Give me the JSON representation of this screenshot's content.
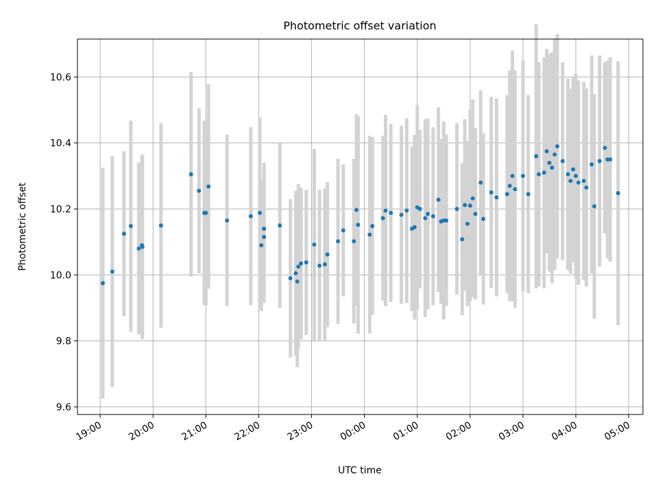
{
  "chart_data": {
    "type": "scatter",
    "title": "Photometric offset variation",
    "xlabel": "UTC time",
    "ylabel": "Photometric offset",
    "x_tick_labels": [
      "19:00",
      "20:00",
      "21:00",
      "22:00",
      "23:00",
      "00:00",
      "01:00",
      "02:00",
      "03:00",
      "04:00",
      "05:00"
    ],
    "y_ticks": [
      9.6,
      9.8,
      10.0,
      10.2,
      10.4,
      10.6
    ],
    "y_tick_labels": [
      "9.6",
      "9.8",
      "10.0",
      "10.2",
      "10.4",
      "10.6"
    ],
    "xlim_hours": [
      18.57,
      29.27
    ],
    "ylim": [
      9.577,
      10.715
    ],
    "grid": true,
    "colors": {
      "points": "#1f77b4",
      "errorbars": "#d3d3d3",
      "grid": "#b0b0b0"
    },
    "series": [
      {
        "x_hours": [
          19.05,
          19.23,
          19.45,
          19.58,
          19.73,
          19.79,
          19.8,
          20.15,
          20.72,
          20.87,
          20.97,
          21.0,
          21.05,
          21.4,
          21.85,
          22.02,
          22.05,
          22.1,
          22.1,
          22.4,
          22.6,
          22.7,
          22.73,
          22.75,
          22.8,
          22.9,
          23.05,
          23.15,
          23.25,
          23.3,
          23.5,
          23.6,
          23.8,
          23.85,
          23.88,
          24.1,
          24.15,
          24.35,
          24.4,
          24.5,
          24.7,
          24.8,
          24.9,
          24.95,
          25.0,
          25.05,
          25.15,
          25.2,
          25.3,
          25.4,
          25.45,
          25.5,
          25.55,
          25.75,
          25.85,
          25.9,
          25.95,
          26.0,
          26.05,
          26.1,
          26.2,
          26.25,
          26.4,
          26.5,
          26.7,
          26.75,
          26.8,
          26.85,
          27.0,
          27.1,
          27.25,
          27.3,
          27.4,
          27.45,
          27.5,
          27.55,
          27.6,
          27.65,
          27.75,
          27.85,
          27.9,
          27.95,
          28.0,
          28.05,
          28.15,
          28.2,
          28.3,
          28.35,
          28.45,
          28.55,
          28.6,
          28.65,
          28.8
        ],
        "y": [
          9.975,
          10.01,
          10.125,
          10.148,
          10.08,
          10.09,
          10.085,
          10.15,
          10.305,
          10.255,
          10.188,
          10.188,
          10.268,
          10.165,
          10.178,
          10.188,
          10.09,
          10.115,
          10.14,
          10.15,
          9.99,
          10.005,
          9.98,
          10.025,
          10.035,
          10.038,
          10.092,
          10.028,
          10.032,
          10.062,
          10.102,
          10.135,
          10.102,
          10.197,
          10.152,
          10.122,
          10.148,
          10.172,
          10.195,
          10.188,
          10.182,
          10.195,
          10.14,
          10.145,
          10.205,
          10.2,
          10.172,
          10.185,
          10.178,
          10.228,
          10.162,
          10.165,
          10.165,
          10.2,
          10.108,
          10.212,
          10.155,
          10.21,
          10.232,
          10.185,
          10.28,
          10.17,
          10.25,
          10.235,
          10.245,
          10.27,
          10.3,
          10.26,
          10.3,
          10.245,
          10.36,
          10.305,
          10.31,
          10.375,
          10.34,
          10.325,
          10.365,
          10.39,
          10.345,
          10.305,
          10.285,
          10.32,
          10.3,
          10.28,
          10.285,
          10.265,
          10.335,
          10.208,
          10.345,
          10.385,
          10.35,
          10.35,
          10.248
        ],
        "err": [
          0.35,
          0.35,
          0.25,
          0.32,
          0.26,
          0.27,
          0.28,
          0.31,
          0.31,
          0.25,
          0.28,
          0.28,
          0.31,
          0.26,
          0.27,
          0.29,
          0.2,
          0.2,
          0.2,
          0.25,
          0.24,
          0.25,
          0.26,
          0.25,
          0.23,
          0.22,
          0.29,
          0.23,
          0.23,
          0.22,
          0.25,
          0.2,
          0.25,
          0.29,
          0.33,
          0.3,
          0.27,
          0.25,
          0.29,
          0.27,
          0.27,
          0.28,
          0.25,
          0.28,
          0.31,
          0.24,
          0.3,
          0.29,
          0.27,
          0.28,
          0.25,
          0.3,
          0.26,
          0.26,
          0.23,
          0.26,
          0.25,
          0.29,
          0.3,
          0.26,
          0.28,
          0.26,
          0.29,
          0.3,
          0.3,
          0.35,
          0.38,
          0.36,
          0.35,
          0.3,
          0.4,
          0.34,
          0.35,
          0.31,
          0.33,
          0.35,
          0.35,
          0.34,
          0.3,
          0.29,
          0.28,
          0.28,
          0.31,
          0.31,
          0.3,
          0.3,
          0.33,
          0.34,
          0.32,
          0.26,
          0.3,
          0.31,
          0.4
        ]
      }
    ]
  }
}
